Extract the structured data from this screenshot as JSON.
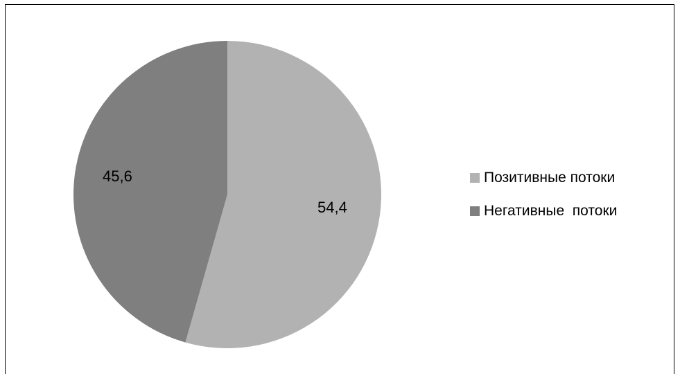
{
  "chart_data": {
    "type": "pie",
    "title": "",
    "series": [
      {
        "values": [
          54.4,
          45.6
        ],
        "labels": [
          "54,4",
          "45,6"
        ]
      }
    ],
    "categories": [
      "Позитивные потоки",
      "Негативные  потоки"
    ],
    "colors": [
      "#b2b2b2",
      "#7f7f7f"
    ],
    "legend_position": "right",
    "start_angle": "top, clockwise"
  },
  "legend": {
    "items": [
      {
        "label": "Позитивные потоки",
        "color": "#b2b2b2"
      },
      {
        "label": "Негативные  потоки",
        "color": "#7f7f7f"
      }
    ]
  },
  "data_labels": [
    "54,4",
    "45,6"
  ]
}
